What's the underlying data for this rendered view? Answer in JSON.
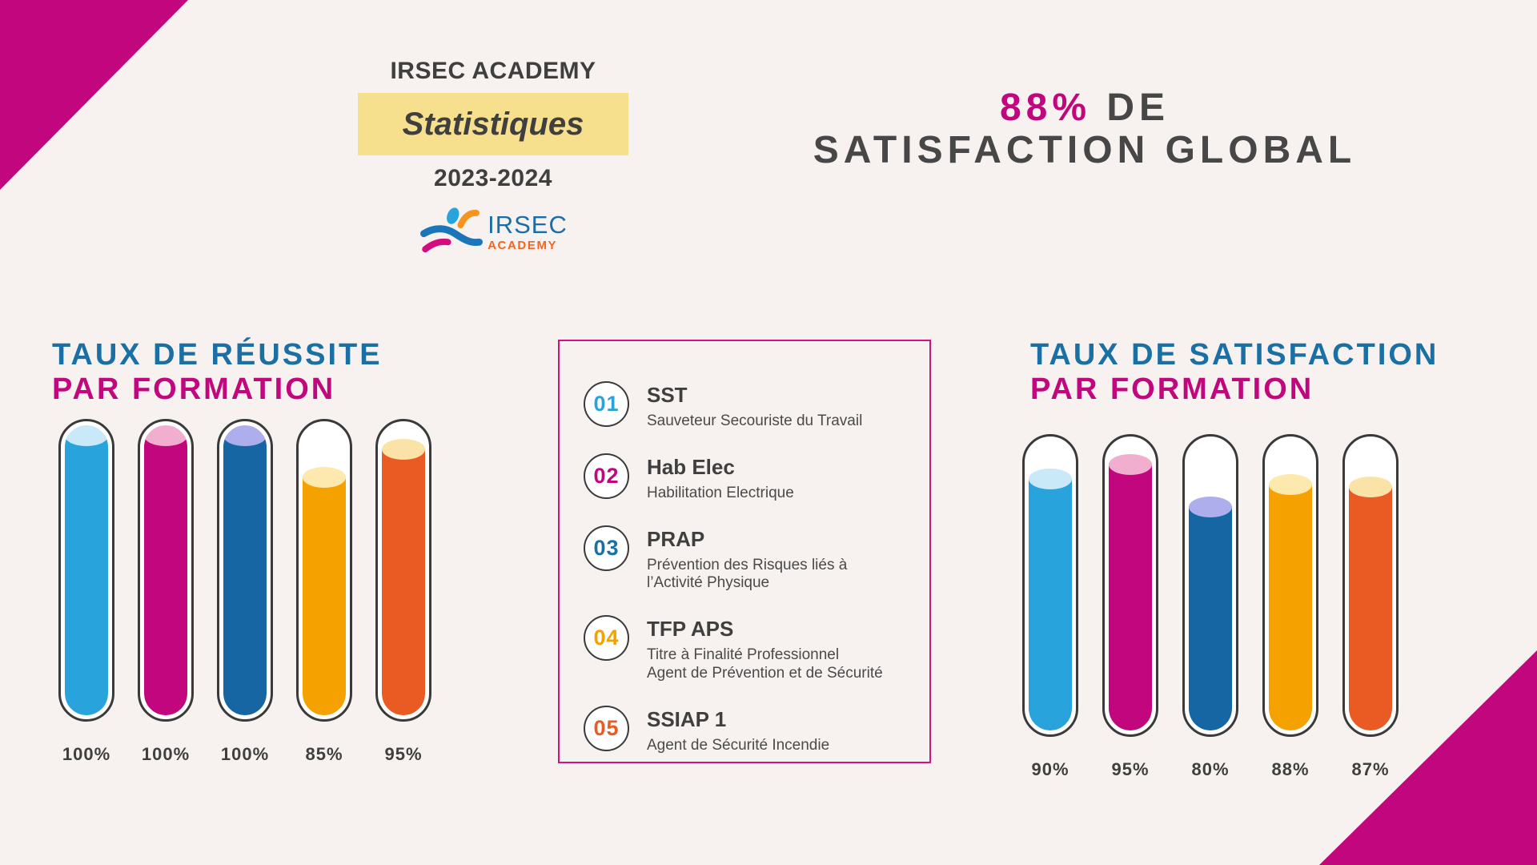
{
  "page": {
    "background": "#F7F2EF",
    "accent_magenta": "#C2077E",
    "accent_blue": "#1A6FA5",
    "text_dark": "#3F3F3F",
    "legend_border": "#D0147F"
  },
  "header": {
    "title": "IRSEC ACADEMY",
    "highlight": "Statistiques",
    "highlight_bg": "#F6DF8D",
    "period": "2023-2024",
    "logo_name": "IRSEC",
    "logo_sub": "ACADEMY"
  },
  "headline": {
    "value": "88%",
    "line1_rest": "DE",
    "line2": "SATISFACTION GLOBAL"
  },
  "left_chart": {
    "title_line1": "TAUX DE RÉUSSITE",
    "title_line2": "PAR FORMATION",
    "bars": [
      {
        "formation": "SST",
        "label": "100%",
        "value": 100,
        "color": "#29A3DC",
        "cap": "#C9E9F9"
      },
      {
        "formation": "Hab Elec",
        "label": "100%",
        "value": 100,
        "color": "#C2077E",
        "cap": "#F2AECE"
      },
      {
        "formation": "PRAP",
        "label": "100%",
        "value": 100,
        "color": "#1566A3",
        "cap": "#AFAEEC"
      },
      {
        "formation": "TFP APS",
        "label": "85%",
        "value": 85,
        "color": "#F5A201",
        "cap": "#FDE9AD"
      },
      {
        "formation": "SSIAP 1",
        "label": "95%",
        "value": 95,
        "color": "#EA5B24",
        "cap": "#FBE2A7"
      }
    ]
  },
  "right_chart": {
    "title_line1": "TAUX DE SATISFACTION",
    "title_line2": "PAR FORMATION",
    "bars": [
      {
        "formation": "SST",
        "label": "90%",
        "value": 90,
        "color": "#29A3DC",
        "cap": "#C9E9F9"
      },
      {
        "formation": "Hab Elec",
        "label": "95%",
        "value": 95,
        "color": "#C2077E",
        "cap": "#F2AECE"
      },
      {
        "formation": "PRAP",
        "label": "80%",
        "value": 80,
        "color": "#1566A3",
        "cap": "#AFAEEC"
      },
      {
        "formation": "TFP APS",
        "label": "88%",
        "value": 88,
        "color": "#F5A201",
        "cap": "#FDE9AD"
      },
      {
        "formation": "SSIAP 1",
        "label": "87%",
        "value": 87,
        "color": "#EA5B24",
        "cap": "#FBE2A7"
      }
    ]
  },
  "legend": {
    "items": [
      {
        "num": "01",
        "color": "#29A3DC",
        "code": "SST",
        "desc_lines": [
          "Sauveteur Secouriste du Travail"
        ]
      },
      {
        "num": "02",
        "color": "#C2077E",
        "code": "Hab Elec",
        "desc_lines": [
          "Habilitation Electrique"
        ]
      },
      {
        "num": "03",
        "color": "#1A6FA5",
        "code": "PRAP",
        "desc_lines": [
          "Prévention des Risques liés à",
          "l’Activité Physique"
        ]
      },
      {
        "num": "04",
        "color": "#F5A201",
        "code": "TFP APS",
        "desc_lines": [
          "Titre à Finalité Professionnel",
          "Agent de Prévention et de Sécurité"
        ]
      },
      {
        "num": "05",
        "color": "#EA5B24",
        "code": "SSIAP 1",
        "desc_lines": [
          "Agent de Sécurité Incendie"
        ]
      }
    ]
  },
  "chart_data": [
    {
      "type": "kpi",
      "title": "88% DE SATISFACTION GLOBAL",
      "value": 88,
      "unit": "%"
    },
    {
      "type": "bar",
      "title": "TAUX DE RÉUSSITE PAR FORMATION",
      "categories": [
        "SST",
        "Hab Elec",
        "PRAP",
        "TFP APS",
        "SSIAP 1"
      ],
      "values": [
        100,
        100,
        100,
        85,
        95
      ],
      "unit": "%",
      "ylim": [
        0,
        100
      ],
      "colors": [
        "#29A3DC",
        "#C2077E",
        "#1566A3",
        "#F5A201",
        "#EA5B24"
      ],
      "legend_position": "center",
      "grid": false,
      "bar_style": "test-tube"
    },
    {
      "type": "bar",
      "title": "TAUX DE SATISFACTION PAR FORMATION",
      "categories": [
        "SST",
        "Hab Elec",
        "PRAP",
        "TFP APS",
        "SSIAP 1"
      ],
      "values": [
        90,
        95,
        80,
        88,
        87
      ],
      "unit": "%",
      "ylim": [
        0,
        100
      ],
      "colors": [
        "#29A3DC",
        "#C2077E",
        "#1566A3",
        "#F5A201",
        "#EA5B24"
      ],
      "legend_position": "center",
      "grid": false,
      "bar_style": "test-tube"
    }
  ]
}
